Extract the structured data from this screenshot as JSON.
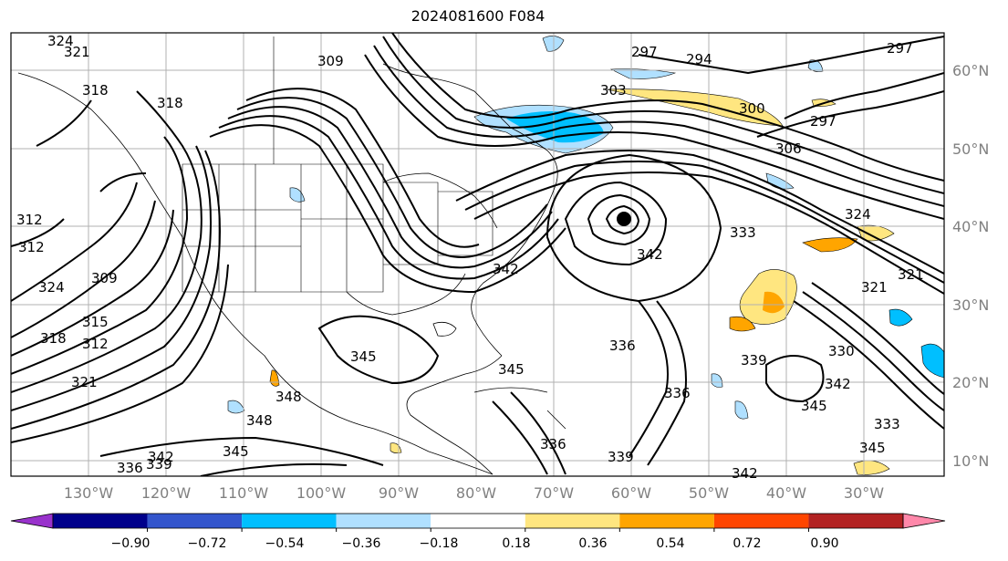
{
  "title": "2024081600 F084",
  "map": {
    "lon_labels": [
      "130°W",
      "120°W",
      "110°W",
      "100°W",
      "90°W",
      "80°W",
      "70°W",
      "60°W",
      "50°W",
      "40°W",
      "30°W"
    ],
    "lat_labels": [
      "60°N",
      "50°N",
      "40°N",
      "30°N",
      "20°N",
      "10°N"
    ],
    "contour_labels": [
      {
        "text": "324"
      },
      {
        "text": "321"
      },
      {
        "text": "318"
      },
      {
        "text": "318"
      },
      {
        "text": "309"
      },
      {
        "text": "297"
      },
      {
        "text": "294"
      },
      {
        "text": "297"
      },
      {
        "text": "300"
      },
      {
        "text": "297"
      },
      {
        "text": "306"
      },
      {
        "text": "303"
      },
      {
        "text": "312"
      },
      {
        "text": "312"
      },
      {
        "text": "324"
      },
      {
        "text": "309"
      },
      {
        "text": "315"
      },
      {
        "text": "312"
      },
      {
        "text": "318"
      },
      {
        "text": "321"
      },
      {
        "text": "345"
      },
      {
        "text": "348"
      },
      {
        "text": "348"
      },
      {
        "text": "342"
      },
      {
        "text": "339"
      },
      {
        "text": "336"
      },
      {
        "text": "345"
      },
      {
        "text": "342"
      },
      {
        "text": "342"
      },
      {
        "text": "333"
      },
      {
        "text": "336"
      },
      {
        "text": "339"
      },
      {
        "text": "336"
      },
      {
        "text": "345"
      },
      {
        "text": "342"
      },
      {
        "text": "321"
      },
      {
        "text": "321"
      },
      {
        "text": "324"
      },
      {
        "text": "345"
      },
      {
        "text": "333"
      },
      {
        "text": "336"
      },
      {
        "text": "339"
      },
      {
        "text": "342"
      },
      {
        "text": "345"
      },
      {
        "text": "330"
      }
    ]
  },
  "colorbar": {
    "ticks": [
      "−0.90",
      "−0.72",
      "−0.54",
      "−0.36",
      "−0.18",
      "0.18",
      "0.36",
      "0.54",
      "0.72",
      "0.90"
    ],
    "colors": [
      "#9932cc",
      "#00008b",
      "#3355cc",
      "#00bfff",
      "#b0e0ff",
      "#ffffff",
      "#ffe680",
      "#ffa500",
      "#ff4500",
      "#b22222",
      "#ff88aa"
    ],
    "extend": "both"
  }
}
